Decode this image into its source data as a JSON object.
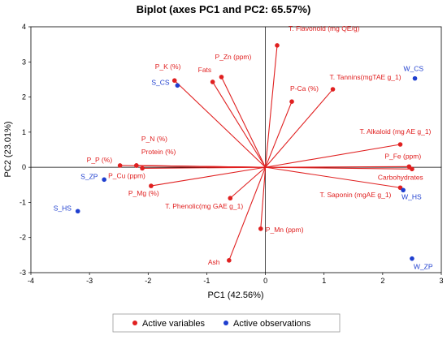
{
  "chart_data": {
    "type": "scatter",
    "title": "Biplot (axes PC1 and PC2: 65.57%)",
    "xlabel": "PC1 (42.56%)",
    "ylabel": "PC2 (23.01%)",
    "xlim": [
      -4,
      3
    ],
    "ylim": [
      -3,
      4
    ],
    "x_ticks": [
      "-4",
      "-3",
      "-2",
      "-1",
      "0",
      "1",
      "2",
      "3"
    ],
    "y_ticks": [
      "-3",
      "-2",
      "-1",
      "0",
      "1",
      "2",
      "3",
      "4"
    ],
    "grid": false,
    "legend_position": "bottom",
    "colors": {
      "variables": "#e02020",
      "observations": "#1f3fcf"
    },
    "series": [
      {
        "name": "Active variables",
        "points": [
          {
            "label": "T. Flavonoid (mg QE/g)",
            "x": 0.2,
            "y": 3.47
          },
          {
            "label": "P_K (%)",
            "x": -1.55,
            "y": 2.47
          },
          {
            "label": "Fats",
            "x": -0.9,
            "y": 2.43
          },
          {
            "label": "P_Zn (ppm)",
            "x": -0.75,
            "y": 2.57
          },
          {
            "label": "P-Ca (%)",
            "x": 0.45,
            "y": 1.87
          },
          {
            "label": "T. Tannins(mgTAE g_1)",
            "x": 1.15,
            "y": 2.22
          },
          {
            "label": "T. Alkaloid (mg AE g_1)",
            "x": 2.3,
            "y": 0.65
          },
          {
            "label": "P_Fe (ppm)",
            "x": 2.45,
            "y": 0.02
          },
          {
            "label": "Carbohydrates",
            "x": 2.5,
            "y": -0.05
          },
          {
            "label": "T. Saponin (mgAE g_1)",
            "x": 2.3,
            "y": -0.58
          },
          {
            "label": "P_N (%)",
            "x": -2.2,
            "y": 0.05
          },
          {
            "label": "Protein (%)",
            "x": -2.2,
            "y": 0.05
          },
          {
            "label": "P_P (%)",
            "x": -2.48,
            "y": 0.05
          },
          {
            "label": "P_Cu (ppm)",
            "x": -2.1,
            "y": -0.03
          },
          {
            "label": "P_Mg (%)",
            "x": -1.95,
            "y": -0.53
          },
          {
            "label": "T. Phenolic(mg GAE g_1)",
            "x": -0.6,
            "y": -0.88
          },
          {
            "label": "P_Mn (ppm)",
            "x": -0.08,
            "y": -1.75
          },
          {
            "label": "Ash",
            "x": -0.62,
            "y": -2.65
          }
        ]
      },
      {
        "name": "Active observations",
        "points": [
          {
            "label": "W_CS",
            "x": 2.55,
            "y": 2.53
          },
          {
            "label": "S_CS",
            "x": -1.5,
            "y": 2.33
          },
          {
            "label": "S_ZP",
            "x": -2.75,
            "y": -0.35
          },
          {
            "label": "S_HS",
            "x": -3.2,
            "y": -1.25
          },
          {
            "label": "W_HS",
            "x": 2.35,
            "y": -0.65
          },
          {
            "label": "W_ZP",
            "x": 2.5,
            "y": -2.6
          }
        ]
      }
    ]
  }
}
